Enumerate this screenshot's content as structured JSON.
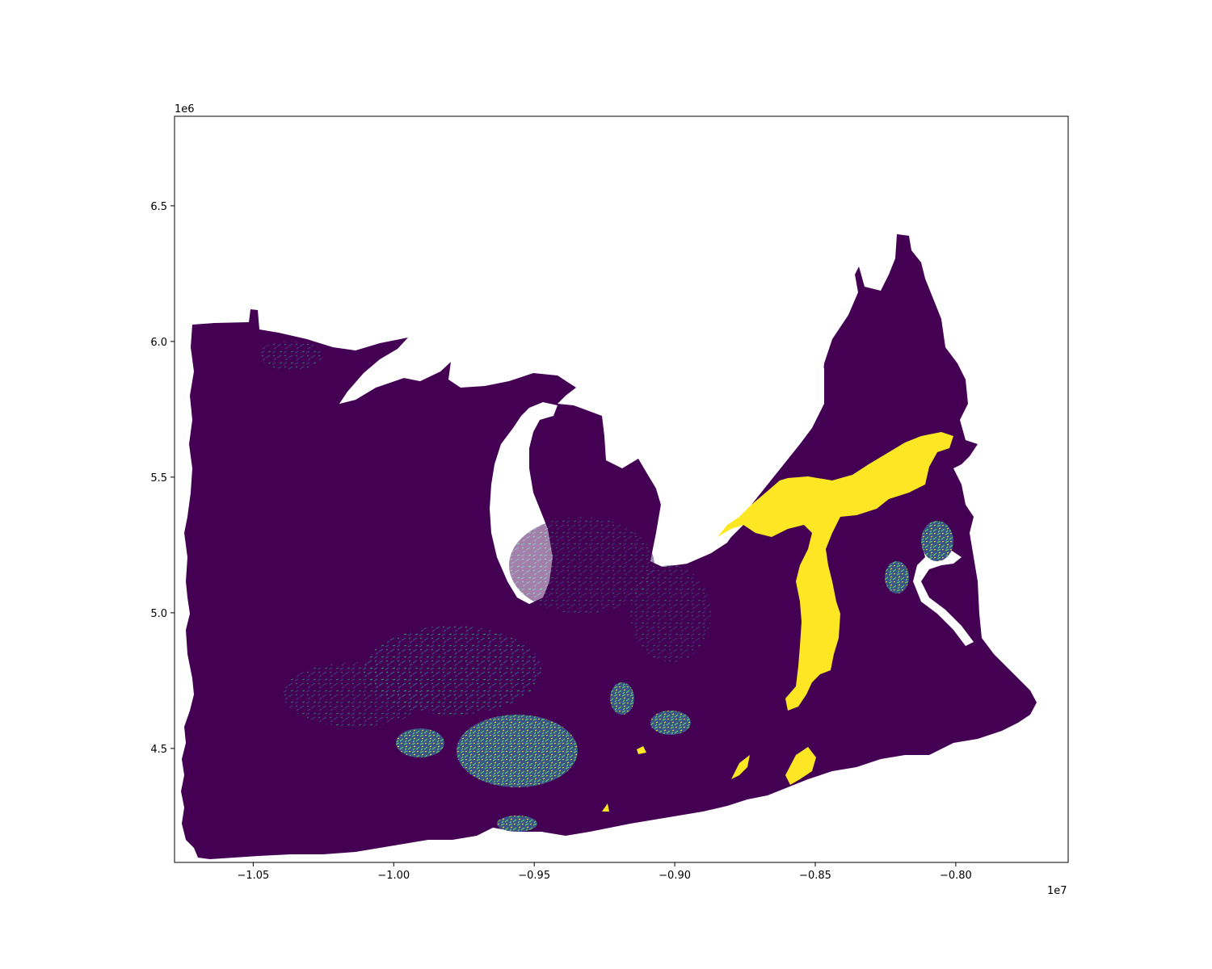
{
  "chart_data": {
    "type": "map",
    "xlim": [
      -10.78,
      -7.6
    ],
    "ylim": [
      4.08,
      6.83
    ],
    "x_offset_label": "1e7",
    "y_offset_label": "1e6",
    "x_ticks": [
      {
        "value": -10.5,
        "label": "−1.05"
      },
      {
        "value": -10.0,
        "label": "−1.00"
      },
      {
        "value": -9.5,
        "label": "−0.95"
      },
      {
        "value": -9.0,
        "label": "−0.90"
      },
      {
        "value": -8.5,
        "label": "−0.85"
      },
      {
        "value": -8.0,
        "label": "−0.80"
      }
    ],
    "y_ticks": [
      {
        "value": 4.5,
        "label": "4.5"
      },
      {
        "value": 5.0,
        "label": "5.0"
      },
      {
        "value": 5.5,
        "label": "5.5"
      },
      {
        "value": 6.0,
        "label": "6.0"
      },
      {
        "value": 6.5,
        "label": "6.5"
      }
    ],
    "colormap": "viridis",
    "colors": {
      "low": "#440154",
      "mid": "#21918c",
      "mid2": "#35b779",
      "high": "#fde725"
    },
    "grid": false,
    "legend": "none"
  }
}
